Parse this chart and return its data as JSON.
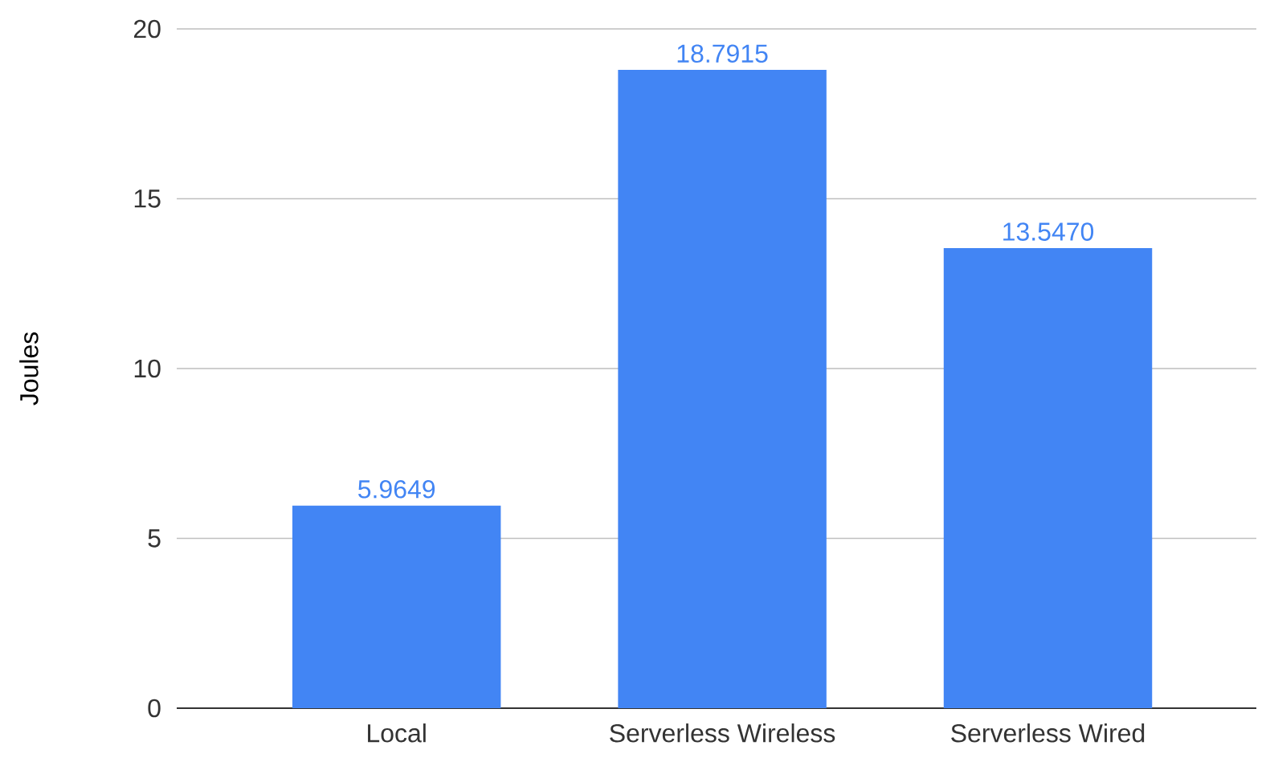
{
  "chart_data": {
    "type": "bar",
    "ylabel": "Joules",
    "categories": [
      "Local",
      "Serverless Wireless",
      "Serverless Wired"
    ],
    "values": [
      5.9649,
      18.7915,
      13.547
    ],
    "value_labels": [
      "5.9649",
      "18.7915",
      "13.5470"
    ],
    "color": "#4285f4",
    "ylim": [
      0,
      20
    ],
    "yticks": [
      0,
      5,
      10,
      15,
      20
    ],
    "grid": "y"
  }
}
